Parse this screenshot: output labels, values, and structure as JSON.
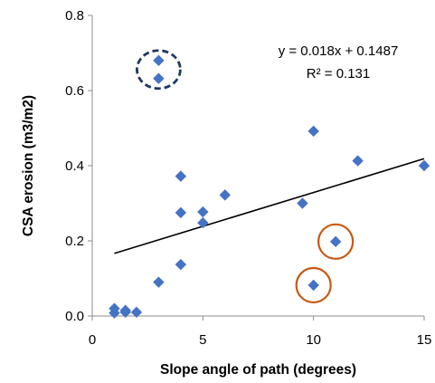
{
  "chart_data": {
    "type": "scatter",
    "xlabel": "Slope angle of path (degrees)",
    "ylabel": "CSA erosion (m3/m2)",
    "xlim": [
      0,
      15
    ],
    "ylim": [
      0,
      0.8
    ],
    "x_ticks": [
      "0",
      "5",
      "10",
      "15"
    ],
    "y_ticks": [
      "0.0",
      "0.2",
      "0.4",
      "0.6",
      "0.8"
    ],
    "grid": false,
    "marker_color": "#4472c4",
    "series": [
      {
        "points": [
          [
            1,
            0.02
          ],
          [
            1,
            0.008
          ],
          [
            1.5,
            0.015
          ],
          [
            1.5,
            0.01
          ],
          [
            2,
            0.01
          ],
          [
            3,
            0.68
          ],
          [
            3,
            0.632
          ],
          [
            3,
            0.09
          ],
          [
            4,
            0.372
          ],
          [
            4,
            0.275
          ],
          [
            4,
            0.137
          ],
          [
            5,
            0.277
          ],
          [
            5,
            0.248
          ],
          [
            6,
            0.322
          ],
          [
            9.5,
            0.3
          ],
          [
            10,
            0.492
          ],
          [
            10,
            0.082
          ],
          [
            11,
            0.198
          ],
          [
            12,
            0.413
          ],
          [
            15,
            0.4
          ]
        ]
      }
    ],
    "trendline": {
      "slope": 0.018,
      "intercept": 0.1487,
      "x_range": [
        1,
        15
      ],
      "color": "#000000"
    },
    "annotations": [
      {
        "text": "y = 0.018x + 0.1487"
      },
      {
        "text": "R² = 0.131"
      }
    ],
    "highlights": [
      {
        "shape": "dashed-circle",
        "x": 3,
        "y": 0.656,
        "color": "#203864"
      },
      {
        "shape": "circle",
        "x": 11,
        "y": 0.198,
        "color": "#c55a11"
      },
      {
        "shape": "circle",
        "x": 10,
        "y": 0.082,
        "color": "#c55a11"
      }
    ]
  }
}
